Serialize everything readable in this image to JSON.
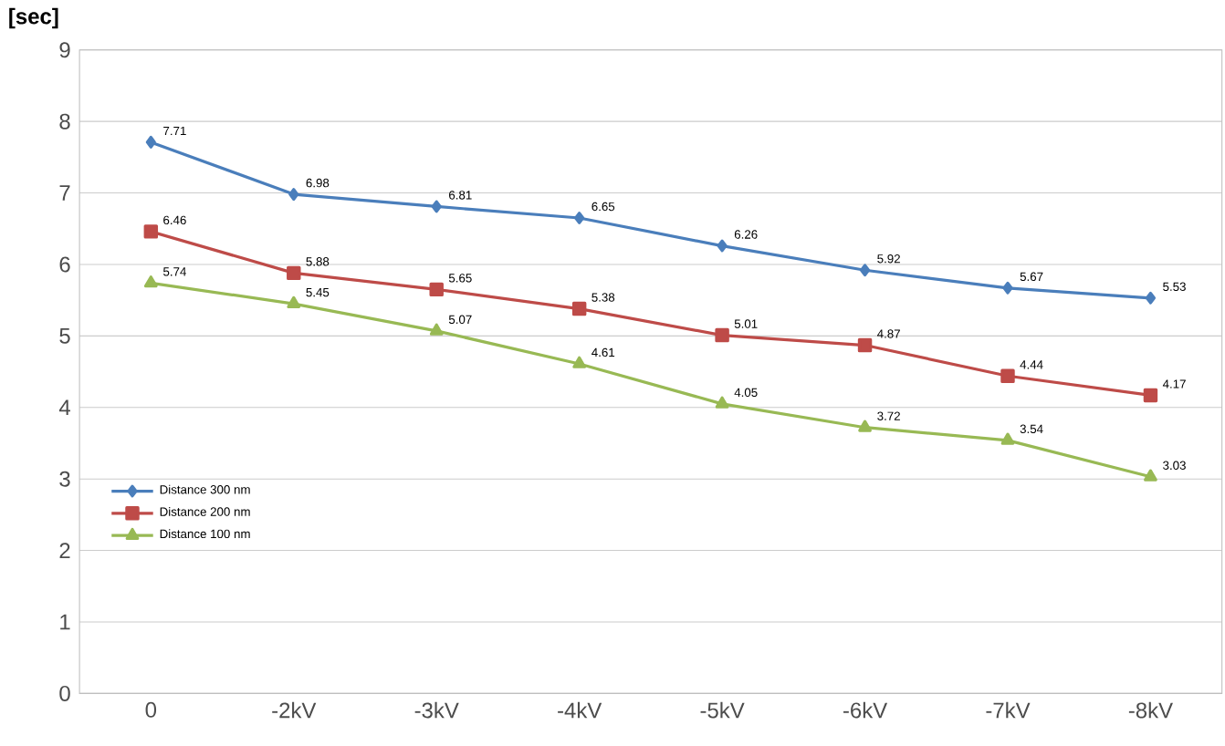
{
  "chart_data": {
    "type": "line",
    "ylabel": "[sec]",
    "categories": [
      "0",
      "-2kV",
      "-3kV",
      "-4kV",
      "-5kV",
      "-6kV",
      "-7kV",
      "-8kV"
    ],
    "series": [
      {
        "name": "Distance 300 nm",
        "color": "#4a7ebb",
        "marker": "diamond",
        "values": [
          7.71,
          6.98,
          6.81,
          6.65,
          6.26,
          5.92,
          5.67,
          5.53
        ]
      },
      {
        "name": "Distance 200 nm",
        "color": "#be4b48",
        "marker": "square",
        "values": [
          6.46,
          5.88,
          5.65,
          5.38,
          5.01,
          4.87,
          4.44,
          4.17
        ]
      },
      {
        "name": "Distance 100 nm",
        "color": "#98b954",
        "marker": "triangle",
        "values": [
          5.74,
          5.45,
          5.07,
          4.61,
          4.05,
          3.72,
          3.54,
          3.03
        ]
      }
    ],
    "ylim": [
      0,
      9
    ],
    "yticks": [
      0,
      1,
      2,
      3,
      4,
      5,
      6,
      7,
      8,
      9
    ],
    "grid": "y",
    "legend": "bottom left",
    "data_labels": true
  }
}
